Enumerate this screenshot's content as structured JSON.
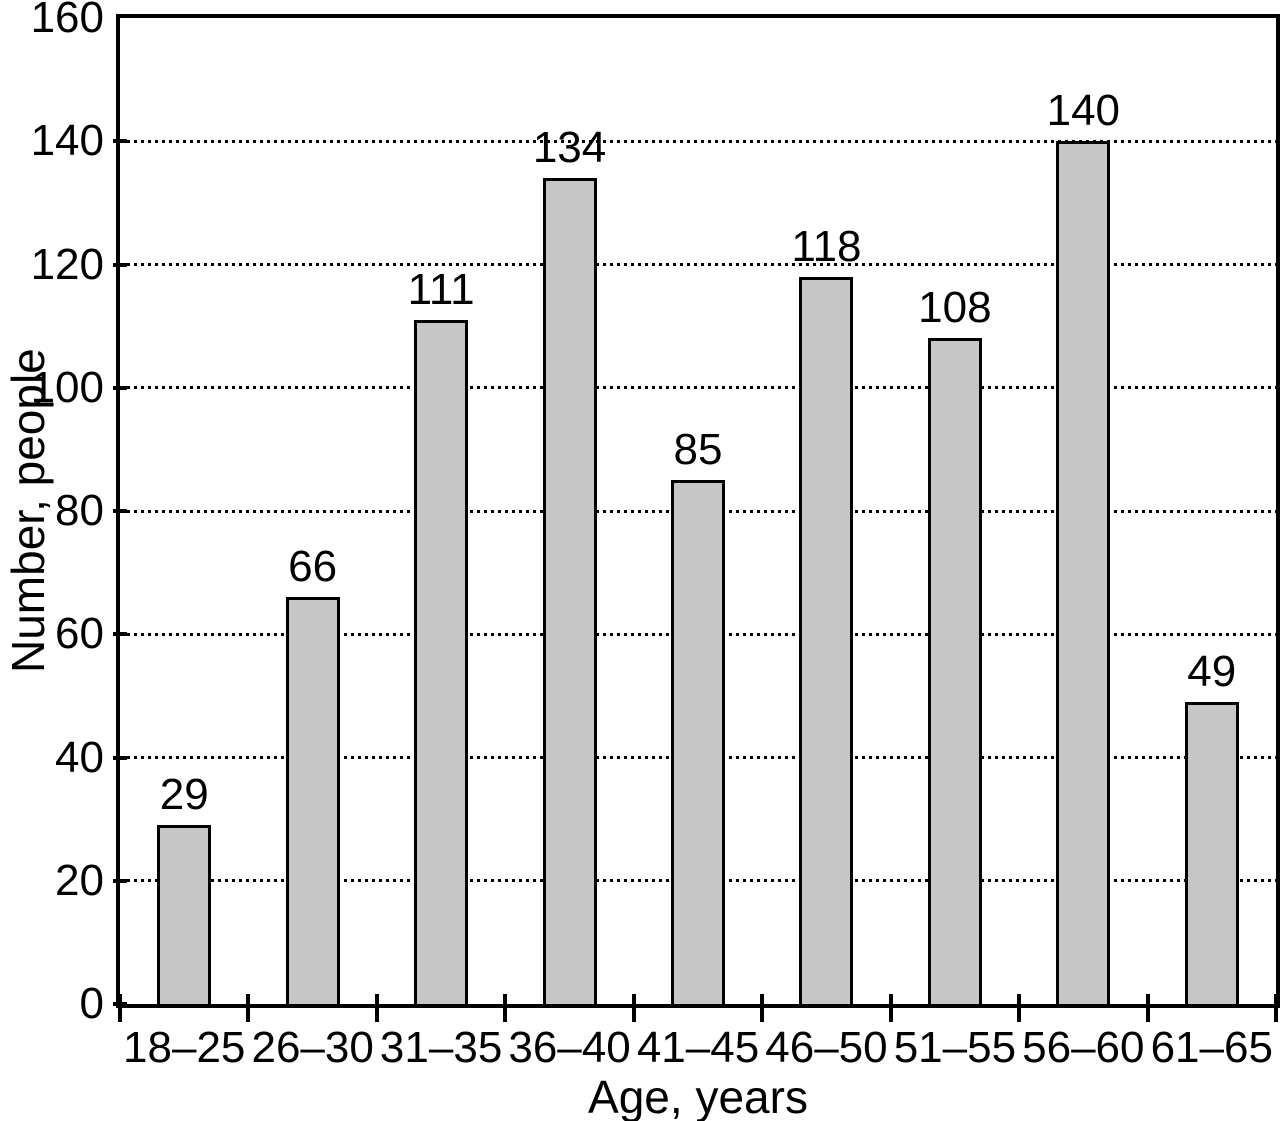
{
  "chart_data": {
    "type": "bar",
    "title": "",
    "xlabel": "Age, years",
    "ylabel": "Number, people",
    "categories": [
      "18–25",
      "26–30",
      "31–35",
      "36–40",
      "41–45",
      "46–50",
      "51–55",
      "56–60",
      "61–65"
    ],
    "values": [
      29,
      66,
      111,
      134,
      85,
      118,
      108,
      140,
      49
    ],
    "ylim": [
      0,
      160
    ],
    "yticks": [
      0,
      20,
      40,
      60,
      80,
      100,
      120,
      140,
      160
    ],
    "grid": "horizontal-dotted",
    "legend": "none",
    "value_labels": true,
    "bar_color": "#c6c6c6",
    "bar_border_color": "#000000",
    "axis_color": "#000000",
    "background_color": "#ffffff",
    "text_color": "#000000"
  }
}
